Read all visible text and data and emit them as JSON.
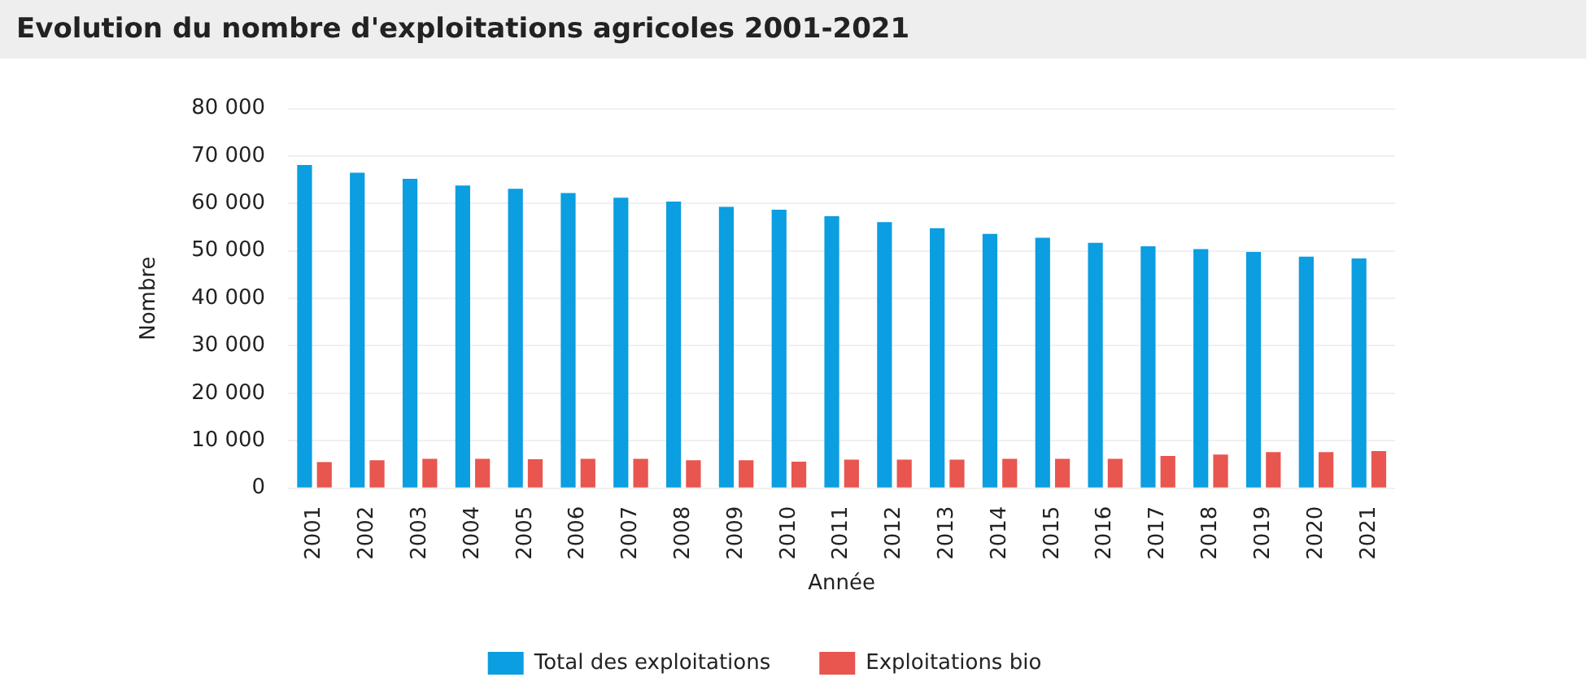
{
  "chart_data": {
    "type": "bar",
    "title": "Evolution du nombre d'exploitations agricoles 2001-2021",
    "xlabel": "Année",
    "ylabel": "Nombre",
    "categories": [
      "2001",
      "2002",
      "2003",
      "2004",
      "2005",
      "2006",
      "2007",
      "2008",
      "2009",
      "2010",
      "2011",
      "2012",
      "2013",
      "2014",
      "2015",
      "2016",
      "2017",
      "2018",
      "2019",
      "2020",
      "2021"
    ],
    "series": [
      {
        "name": "Total des exploitations",
        "color": "#0b9ee0",
        "values": [
          68100,
          66500,
          65200,
          63800,
          63100,
          62200,
          61200,
          60400,
          59300,
          58700,
          57300,
          56100,
          54800,
          53600,
          52800,
          51700,
          51000,
          50400,
          49800,
          48800,
          48400
        ]
      },
      {
        "name": "Exploitations bio",
        "color": "#e8564f",
        "values": [
          5500,
          5900,
          6200,
          6200,
          6100,
          6200,
          6200,
          5900,
          5900,
          5600,
          6000,
          6000,
          6000,
          6200,
          6200,
          6200,
          6800,
          7100,
          7600,
          7600,
          7800
        ]
      }
    ],
    "ylim": [
      0,
      80000
    ],
    "yticks": [
      0,
      {
        "value": 10000,
        "label": "10 000"
      },
      {
        "value": 20000,
        "label": "20 000"
      },
      {
        "value": 30000,
        "label": "30 000"
      },
      {
        "value": 40000,
        "label": "40 000"
      },
      {
        "value": 50000,
        "label": "50 000"
      },
      {
        "value": 60000,
        "label": "60 000"
      },
      {
        "value": 70000,
        "label": "70 000"
      },
      {
        "value": 80000,
        "label": "80 000"
      }
    ],
    "grid": "y",
    "legend": "bottom"
  }
}
